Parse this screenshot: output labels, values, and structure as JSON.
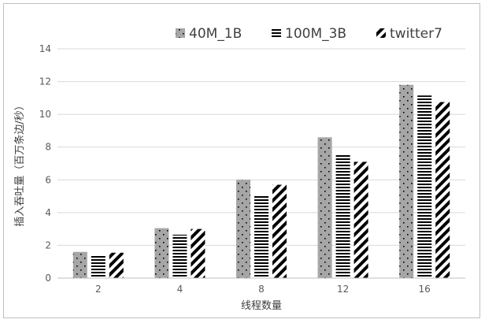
{
  "chart_data": {
    "type": "bar",
    "title": "",
    "xlabel": "线程数量",
    "ylabel": "插入吞吐量（百万条边/秒）",
    "categories": [
      "2",
      "4",
      "8",
      "12",
      "16"
    ],
    "ylim": [
      0,
      14
    ],
    "yticks": [
      0,
      2,
      4,
      6,
      8,
      10,
      12,
      14
    ],
    "grid": true,
    "legend_position": "top-right",
    "series": [
      {
        "name": "40M_1B",
        "values": [
          1.6,
          3.05,
          6.0,
          8.6,
          11.8
        ],
        "pattern": "dots",
        "color": "#a6a6a6"
      },
      {
        "name": "100M_3B",
        "values": [
          1.4,
          2.65,
          5.1,
          7.55,
          11.15
        ],
        "pattern": "horizontal-stripes",
        "color": "#000000"
      },
      {
        "name": "twitter7",
        "values": [
          1.55,
          3.0,
          5.7,
          7.1,
          10.75
        ],
        "pattern": "diagonal-stripes",
        "color": "#000000"
      }
    ]
  }
}
